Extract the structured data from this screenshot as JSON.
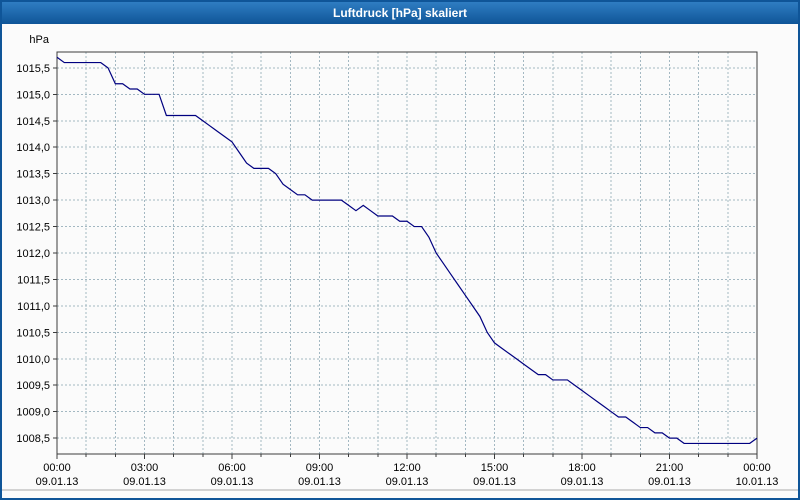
{
  "window": {
    "title_bar_color_top": "#2f7dc2",
    "title_bar_color_bottom": "#0f5598"
  },
  "chart_data": {
    "type": "line",
    "title": "Luftdruck [hPa] skaliert",
    "ylabel": "hPa",
    "xlabel": "",
    "xlim": [
      0,
      24
    ],
    "ylim": [
      1008.2,
      1015.8
    ],
    "grid": true,
    "legend": "none",
    "line_color": "#000080",
    "grid_color": "#a3b8c2",
    "sample_interval_hours": 0.25,
    "start_hour": 0,
    "x_ticks": [
      {
        "h": 0,
        "time": "00:00",
        "date": "09.01.13"
      },
      {
        "h": 3,
        "time": "03:00",
        "date": "09.01.13"
      },
      {
        "h": 6,
        "time": "06:00",
        "date": "09.01.13"
      },
      {
        "h": 9,
        "time": "09:00",
        "date": "09.01.13"
      },
      {
        "h": 12,
        "time": "12:00",
        "date": "09.01.13"
      },
      {
        "h": 15,
        "time": "15:00",
        "date": "09.01.13"
      },
      {
        "h": 18,
        "time": "18:00",
        "date": "09.01.13"
      },
      {
        "h": 21,
        "time": "21:00",
        "date": "09.01.13"
      },
      {
        "h": 24,
        "time": "00:00",
        "date": "10.01.13"
      }
    ],
    "y_ticks": [
      {
        "v": 1015.5,
        "label": "1015,5"
      },
      {
        "v": 1015.0,
        "label": "1015,0"
      },
      {
        "v": 1014.5,
        "label": "1014,5"
      },
      {
        "v": 1014.0,
        "label": "1014,0"
      },
      {
        "v": 1013.5,
        "label": "1013,5"
      },
      {
        "v": 1013.0,
        "label": "1013,0"
      },
      {
        "v": 1012.5,
        "label": "1012,5"
      },
      {
        "v": 1012.0,
        "label": "1012,0"
      },
      {
        "v": 1011.5,
        "label": "1011,5"
      },
      {
        "v": 1011.0,
        "label": "1011,0"
      },
      {
        "v": 1010.5,
        "label": "1010,5"
      },
      {
        "v": 1010.0,
        "label": "1010,0"
      },
      {
        "v": 1009.5,
        "label": "1009,5"
      },
      {
        "v": 1009.0,
        "label": "1009,0"
      },
      {
        "v": 1008.5,
        "label": "1008,5"
      }
    ],
    "values": [
      1015.7,
      1015.6,
      1015.6,
      1015.6,
      1015.6,
      1015.6,
      1015.6,
      1015.5,
      1015.2,
      1015.2,
      1015.1,
      1015.1,
      1015.0,
      1015.0,
      1015.0,
      1014.6,
      1014.6,
      1014.6,
      1014.6,
      1014.6,
      1014.5,
      1014.4,
      1014.3,
      1014.2,
      1014.1,
      1013.9,
      1013.7,
      1013.6,
      1013.6,
      1013.6,
      1013.5,
      1013.3,
      1013.2,
      1013.1,
      1013.1,
      1013.0,
      1013.0,
      1013.0,
      1013.0,
      1013.0,
      1012.9,
      1012.8,
      1012.9,
      1012.8,
      1012.7,
      1012.7,
      1012.7,
      1012.6,
      1012.6,
      1012.5,
      1012.5,
      1012.3,
      1012.0,
      1011.8,
      1011.6,
      1011.4,
      1011.2,
      1011.0,
      1010.8,
      1010.5,
      1010.3,
      1010.2,
      1010.1,
      1010.0,
      1009.9,
      1009.8,
      1009.7,
      1009.7,
      1009.6,
      1009.6,
      1009.6,
      1009.5,
      1009.4,
      1009.3,
      1009.2,
      1009.1,
      1009.0,
      1008.9,
      1008.9,
      1008.8,
      1008.7,
      1008.7,
      1008.6,
      1008.6,
      1008.5,
      1008.5,
      1008.4,
      1008.4,
      1008.4,
      1008.4,
      1008.4,
      1008.4,
      1008.4,
      1008.4,
      1008.4,
      1008.4,
      1008.5
    ]
  }
}
